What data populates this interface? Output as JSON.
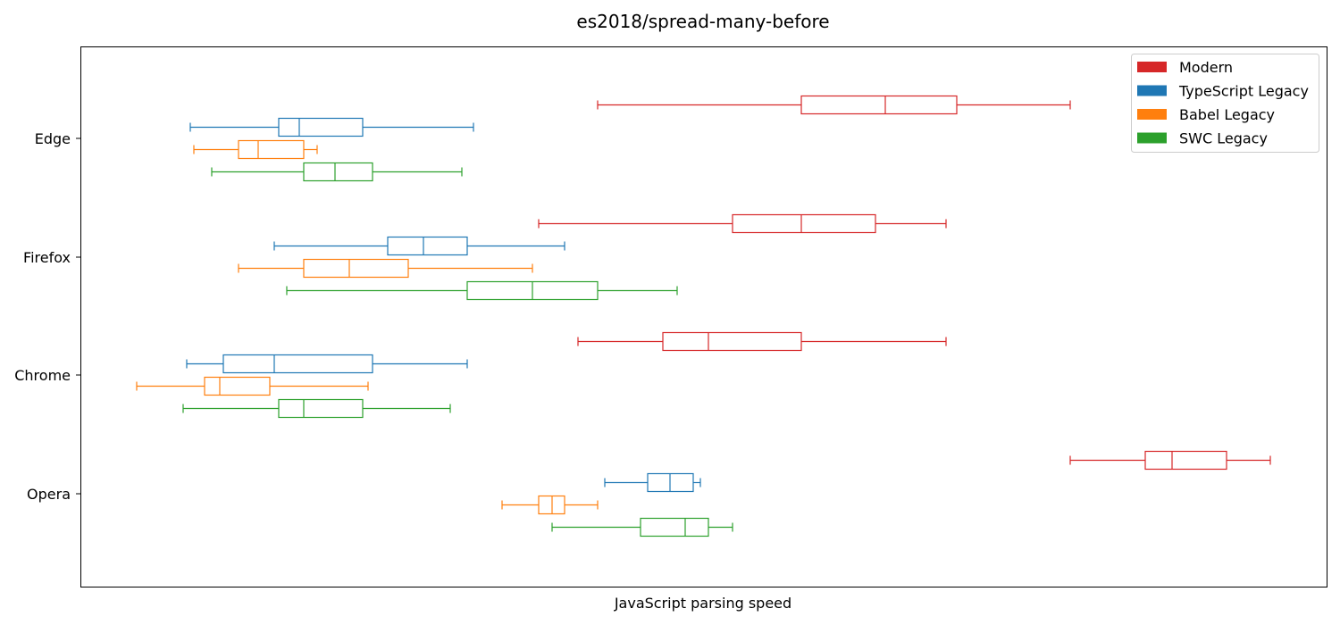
{
  "chart_data": {
    "type": "boxplot",
    "orientation": "horizontal",
    "title": "es2018/spread-many-before",
    "xlabel": "JavaScript parsing speed",
    "ylabel": "",
    "x_ticks_shown": false,
    "grid": false,
    "legend_position": "top-right",
    "categories": [
      "Edge",
      "Firefox",
      "Chrome",
      "Opera"
    ],
    "series": [
      {
        "name": "Modern",
        "color": "#d62728",
        "boxes": [
          {
            "category": "Edge",
            "whislo": 579,
            "q1": 807,
            "med": 901,
            "q3": 981,
            "whishi": 1108
          },
          {
            "category": "Firefox",
            "whislo": 513,
            "q1": 730,
            "med": 807,
            "q3": 890,
            "whishi": 969
          },
          {
            "category": "Chrome",
            "whislo": 557,
            "q1": 652,
            "med": 703,
            "q3": 807,
            "whishi": 969
          },
          {
            "category": "Opera",
            "whislo": 1108,
            "q1": 1192,
            "med": 1222,
            "q3": 1283,
            "whishi": 1332
          }
        ]
      },
      {
        "name": "TypeScript Legacy",
        "color": "#1f77b4",
        "boxes": [
          {
            "category": "Edge",
            "whislo": 123,
            "q1": 222,
            "med": 245,
            "q3": 316,
            "whishi": 440
          },
          {
            "category": "Firefox",
            "whislo": 217,
            "q1": 344,
            "med": 384,
            "q3": 433,
            "whishi": 542
          },
          {
            "category": "Chrome",
            "whislo": 119,
            "q1": 160,
            "med": 217,
            "q3": 327,
            "whishi": 433
          },
          {
            "category": "Opera",
            "whislo": 587,
            "q1": 635,
            "med": 660,
            "q3": 686,
            "whishi": 694
          }
        ]
      },
      {
        "name": "Babel Legacy",
        "color": "#ff7f0e",
        "boxes": [
          {
            "category": "Edge",
            "whislo": 127,
            "q1": 177,
            "med": 199,
            "q3": 250,
            "whishi": 265
          },
          {
            "category": "Firefox",
            "whislo": 177,
            "q1": 250,
            "med": 301,
            "q3": 367,
            "whishi": 506
          },
          {
            "category": "Chrome",
            "whislo": 63,
            "q1": 139,
            "med": 156,
            "q3": 212,
            "whishi": 322
          },
          {
            "category": "Opera",
            "whislo": 472,
            "q1": 513,
            "med": 528,
            "q3": 542,
            "whishi": 579
          }
        ]
      },
      {
        "name": "SWC Legacy",
        "color": "#2ca02c",
        "boxes": [
          {
            "category": "Edge",
            "whislo": 147,
            "q1": 250,
            "med": 285,
            "q3": 327,
            "whishi": 427
          },
          {
            "category": "Firefox",
            "whislo": 231,
            "q1": 433,
            "med": 506,
            "q3": 579,
            "whishi": 668
          },
          {
            "category": "Chrome",
            "whislo": 115,
            "q1": 222,
            "med": 250,
            "q3": 316,
            "whishi": 414
          },
          {
            "category": "Opera",
            "whislo": 528,
            "q1": 627,
            "med": 677,
            "q3": 703,
            "whishi": 730
          }
        ]
      }
    ],
    "xlim": [
      0,
      1395
    ]
  }
}
